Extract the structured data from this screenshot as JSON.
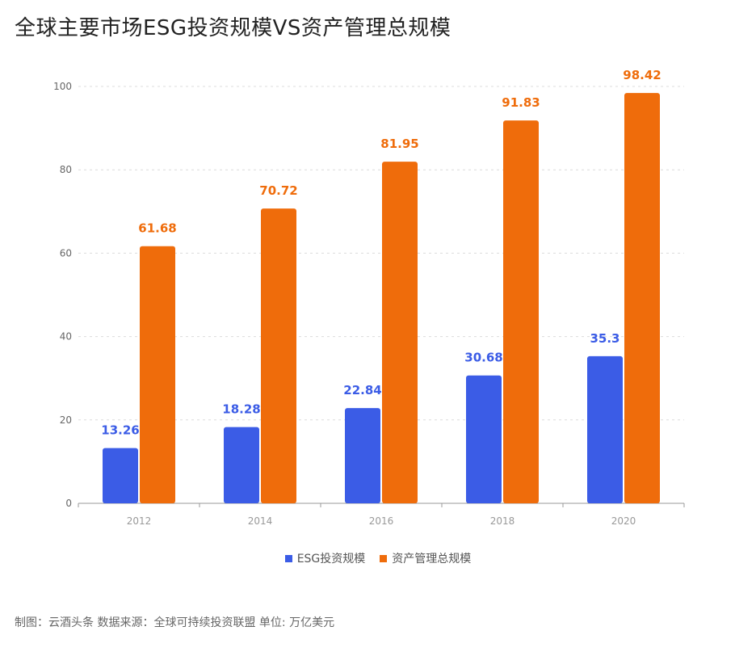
{
  "title": "全球主要市场ESG投资规模VS资产管理总规模",
  "footer": "制图：云酒头条   数据来源：全球可持续投资联盟    单位: 万亿美元",
  "colors": {
    "esg": "#3b5ce6",
    "total": "#ef6c0b"
  },
  "chart_data": {
    "type": "bar",
    "categories": [
      "2012",
      "2014",
      "2016",
      "2018",
      "2020"
    ],
    "series": [
      {
        "name": "ESG投资规模",
        "values": [
          13.26,
          18.28,
          22.84,
          30.68,
          35.3
        ],
        "labels": [
          "13.26",
          "18.28",
          "22.84",
          "30.68",
          "35.3"
        ]
      },
      {
        "name": "资产管理总规模",
        "values": [
          61.68,
          70.72,
          81.95,
          91.83,
          98.42
        ],
        "labels": [
          "61.68",
          "70.72",
          "81.95",
          "91.83",
          "98.42"
        ]
      }
    ],
    "yticks": [
      "0",
      "20",
      "40",
      "60",
      "80",
      "100"
    ],
    "ylim": [
      0,
      100
    ],
    "grid": true,
    "legend": "bottom"
  }
}
